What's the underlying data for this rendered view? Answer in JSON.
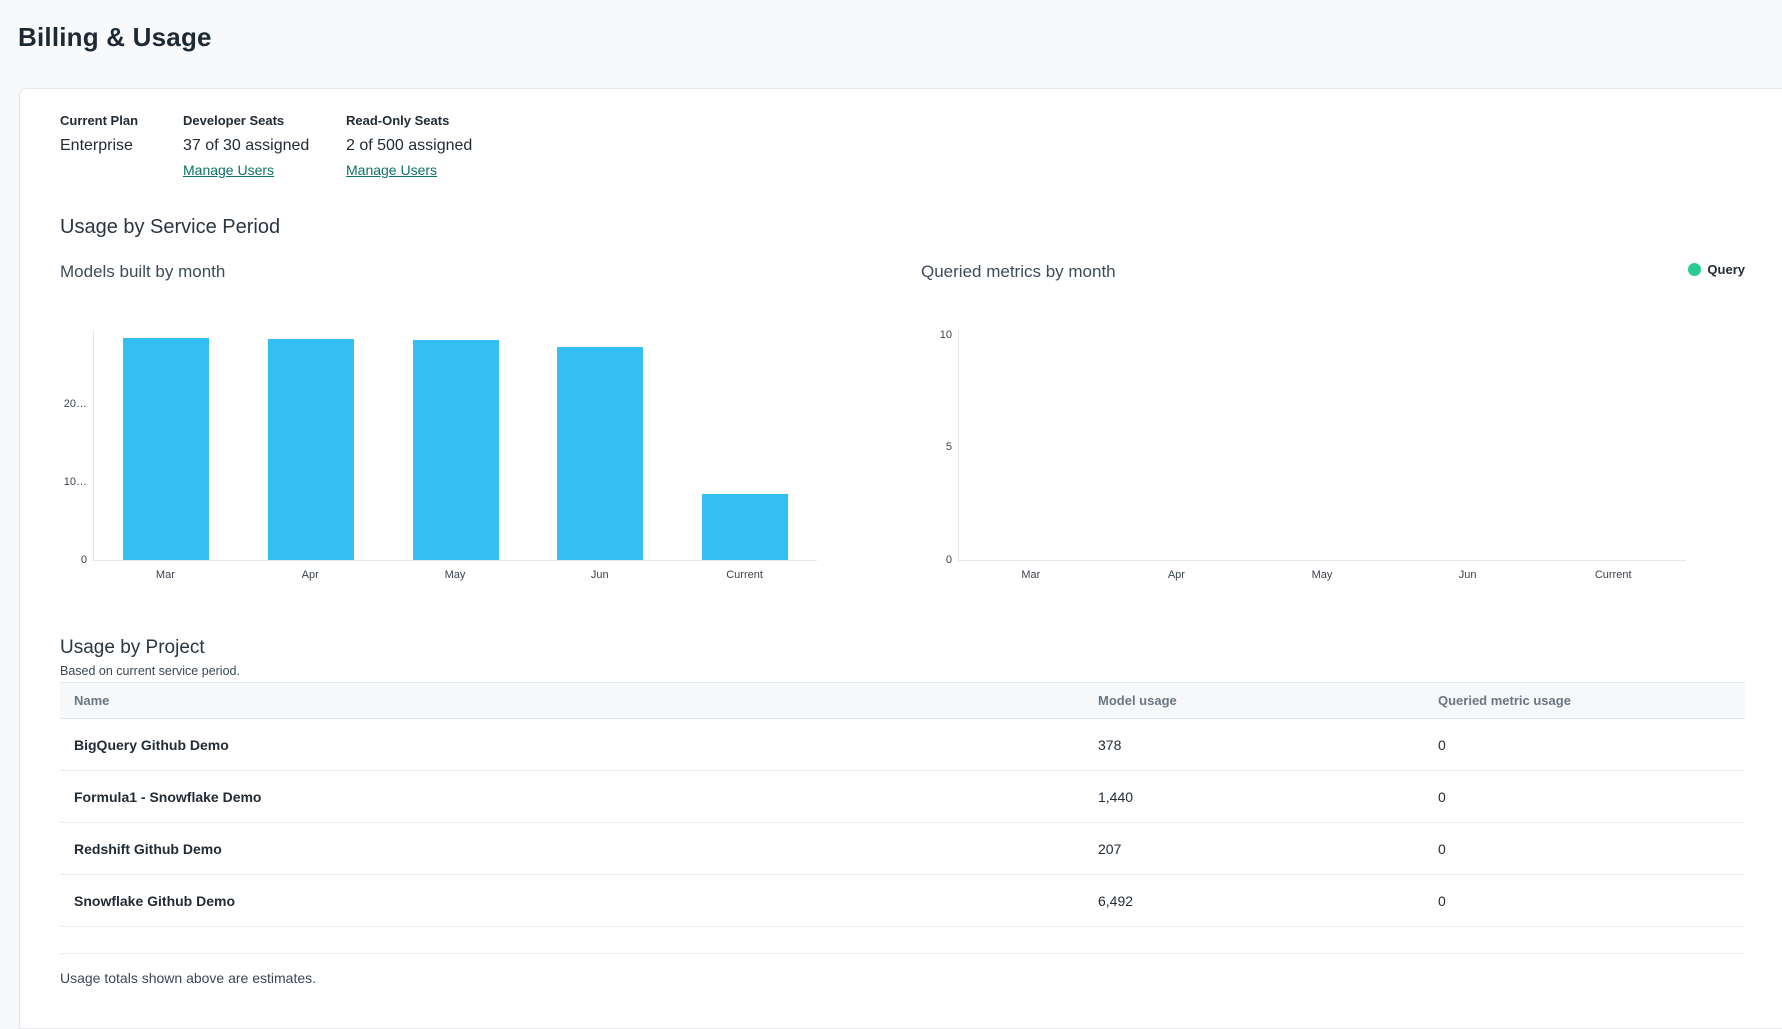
{
  "page": {
    "title": "Billing & Usage"
  },
  "colors": {
    "link_teal": "#0c7366",
    "bar_blue": "#33bff2",
    "legend_green": "#2aca93"
  },
  "plan": {
    "columns": [
      {
        "label": "Current Plan",
        "value": "Enterprise"
      },
      {
        "label": "Developer Seats",
        "value": "37 of 30 assigned",
        "link": "Manage Users"
      },
      {
        "label": "Read-Only Seats",
        "value": "2 of 500 assigned",
        "link": "Manage Users"
      }
    ]
  },
  "sections": {
    "service_period_heading": "Usage by Service Period",
    "project_heading": "Usage by Project",
    "project_subheading": "Based on current service period.",
    "footnote": "Usage totals shown above are estimates."
  },
  "chart_data": [
    {
      "type": "bar",
      "title": "Models built by month",
      "categories": [
        "Mar",
        "Apr",
        "May",
        "Jun",
        "Current"
      ],
      "values": [
        28500,
        28400,
        28200,
        27300,
        8500
      ],
      "ylim": [
        0,
        29500
      ],
      "y_ticks": [
        0,
        10000,
        20000
      ],
      "y_tick_labels": [
        "0",
        "10…",
        "20…"
      ],
      "bar_color": "#33bff2",
      "grid": false,
      "xlabel": "",
      "ylabel": ""
    },
    {
      "type": "bar",
      "title": "Queried metrics by month",
      "categories": [
        "Mar",
        "Apr",
        "May",
        "Jun",
        "Current"
      ],
      "series": [
        {
          "name": "Query",
          "values": [
            0,
            0,
            0,
            0,
            0
          ]
        }
      ],
      "ylim": [
        0,
        10.2
      ],
      "y_ticks": [
        0,
        5,
        10
      ],
      "y_tick_labels": [
        "0",
        "5",
        "10"
      ],
      "legend": [
        {
          "label": "Query",
          "color": "#2aca93"
        }
      ],
      "legend_position": "top-right",
      "grid": false,
      "xlabel": "",
      "ylabel": ""
    }
  ],
  "table": {
    "columns": [
      "Name",
      "Model usage",
      "Queried metric usage"
    ],
    "rows": [
      {
        "name": "BigQuery Github Demo",
        "model_usage": "378",
        "queried_metric_usage": "0"
      },
      {
        "name": "Formula1 - Snowflake Demo",
        "model_usage": "1,440",
        "queried_metric_usage": "0"
      },
      {
        "name": "Redshift Github Demo",
        "model_usage": "207",
        "queried_metric_usage": "0"
      },
      {
        "name": "Snowflake Github Demo",
        "model_usage": "6,492",
        "queried_metric_usage": "0"
      }
    ]
  }
}
